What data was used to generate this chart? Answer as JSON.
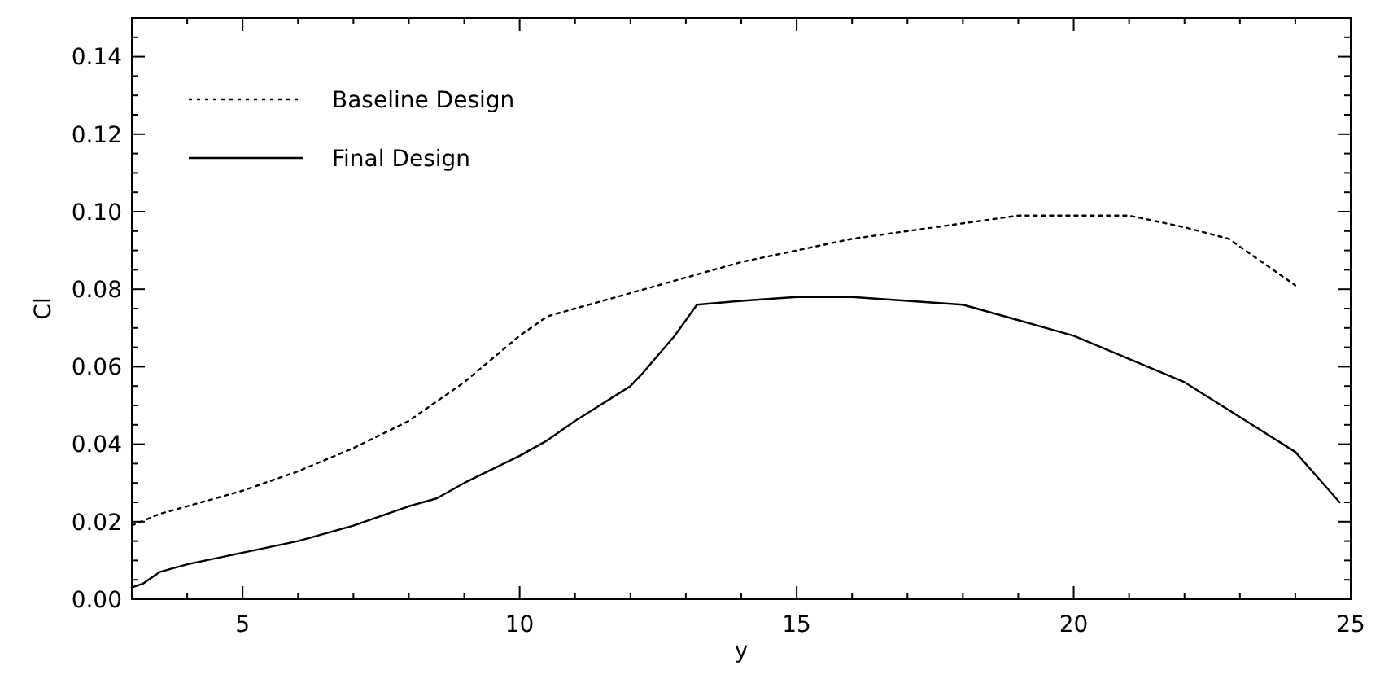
{
  "chart_data": {
    "type": "line",
    "xlabel": "y",
    "ylabel": "Cl",
    "xlim": [
      3,
      25
    ],
    "ylim": [
      0,
      0.15
    ],
    "xticks": [
      {
        "value": 4,
        "label": null
      },
      5,
      {
        "value": 6,
        "label": null
      },
      {
        "value": 7,
        "label": null
      },
      {
        "value": 8,
        "label": null
      },
      {
        "value": 9,
        "label": null
      },
      10,
      {
        "value": 11,
        "label": null
      },
      {
        "value": 12,
        "label": null
      },
      {
        "value": 13,
        "label": null
      },
      {
        "value": 14,
        "label": null
      },
      15,
      {
        "value": 16,
        "label": null
      },
      {
        "value": 17,
        "label": null
      },
      {
        "value": 18,
        "label": null
      },
      {
        "value": 19,
        "label": null
      },
      20,
      {
        "value": 21,
        "label": null
      },
      {
        "value": 22,
        "label": null
      },
      {
        "value": 23,
        "label": null
      },
      {
        "value": 24,
        "label": null
      },
      25
    ],
    "yticks": [
      {
        "value": 0,
        "label": "0.00"
      },
      {
        "value": 0.005,
        "label": null
      },
      {
        "value": 0.01,
        "label": null
      },
      {
        "value": 0.015,
        "label": null
      },
      {
        "value": 0.02,
        "label": "0.02"
      },
      {
        "value": 0.025,
        "label": null
      },
      {
        "value": 0.03,
        "label": null
      },
      {
        "value": 0.035,
        "label": null
      },
      {
        "value": 0.04,
        "label": "0.04"
      },
      {
        "value": 0.045,
        "label": null
      },
      {
        "value": 0.05,
        "label": null
      },
      {
        "value": 0.055,
        "label": null
      },
      {
        "value": 0.06,
        "label": "0.06"
      },
      {
        "value": 0.065,
        "label": null
      },
      {
        "value": 0.07,
        "label": null
      },
      {
        "value": 0.075,
        "label": null
      },
      {
        "value": 0.08,
        "label": "0.08"
      },
      {
        "value": 0.085,
        "label": null
      },
      {
        "value": 0.09,
        "label": null
      },
      {
        "value": 0.095,
        "label": null
      },
      {
        "value": 0.1,
        "label": "0.10"
      },
      {
        "value": 0.105,
        "label": null
      },
      {
        "value": 0.11,
        "label": null
      },
      {
        "value": 0.115,
        "label": null
      },
      {
        "value": 0.12,
        "label": "0.12"
      },
      {
        "value": 0.125,
        "label": null
      },
      {
        "value": 0.13,
        "label": null
      },
      {
        "value": 0.135,
        "label": null
      },
      {
        "value": 0.14,
        "label": "0.14"
      },
      {
        "value": 0.145,
        "label": null
      }
    ],
    "grid": false,
    "legend": "top left",
    "series": [
      {
        "name": "Baseline Design",
        "color": "#000000",
        "line_style": "dotted",
        "x": [
          3,
          3.5,
          5,
          6,
          7,
          8,
          9,
          10,
          10.5,
          11,
          12,
          13,
          14,
          15,
          16,
          17,
          18,
          19,
          20,
          21,
          22,
          22.8,
          24
        ],
        "values": [
          0.019,
          0.022,
          0.028,
          0.033,
          0.039,
          0.046,
          0.056,
          0.068,
          0.073,
          0.075,
          0.079,
          0.083,
          0.087,
          0.09,
          0.093,
          0.095,
          0.097,
          0.099,
          0.099,
          0.099,
          0.096,
          0.093,
          0.081
        ]
      },
      {
        "name": "Final Design",
        "color": "#000000",
        "line_style": "solid",
        "x": [
          3,
          3.2,
          3.5,
          4,
          5,
          6,
          7,
          8,
          8.5,
          9,
          10,
          10.5,
          11,
          12,
          12.2,
          12.8,
          13.2,
          14,
          15,
          16,
          17,
          18,
          19,
          20,
          21,
          22,
          23,
          24,
          24.8
        ],
        "values": [
          0.003,
          0.004,
          0.007,
          0.009,
          0.012,
          0.015,
          0.019,
          0.024,
          0.026,
          0.03,
          0.037,
          0.041,
          0.046,
          0.055,
          0.058,
          0.068,
          0.076,
          0.077,
          0.078,
          0.078,
          0.077,
          0.076,
          0.072,
          0.068,
          0.062,
          0.056,
          0.047,
          0.038,
          0.025
        ]
      }
    ]
  }
}
